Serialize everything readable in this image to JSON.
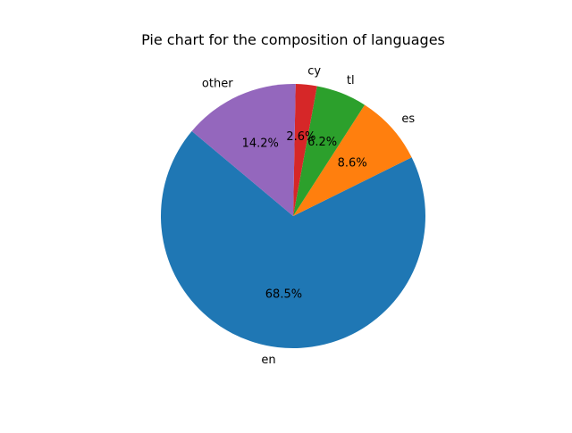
{
  "chart_data": {
    "type": "pie",
    "title": "Pie chart for the composition of languages",
    "slices": [
      {
        "label": "en",
        "value": 68.5,
        "pct_label": "68.5%",
        "color": "#1f77b4"
      },
      {
        "label": "es",
        "value": 8.6,
        "pct_label": "8.6%",
        "color": "#ff7f0e"
      },
      {
        "label": "tl",
        "value": 6.2,
        "pct_label": "6.2%",
        "color": "#2ca02c"
      },
      {
        "label": "cy",
        "value": 2.6,
        "pct_label": "2.6%",
        "color": "#d62728"
      },
      {
        "label": "other",
        "value": 14.2,
        "pct_label": "14.2%",
        "color": "#9467bd"
      }
    ],
    "start_angle_deg": 140,
    "direction": "counterclockwise",
    "legend": "none"
  }
}
